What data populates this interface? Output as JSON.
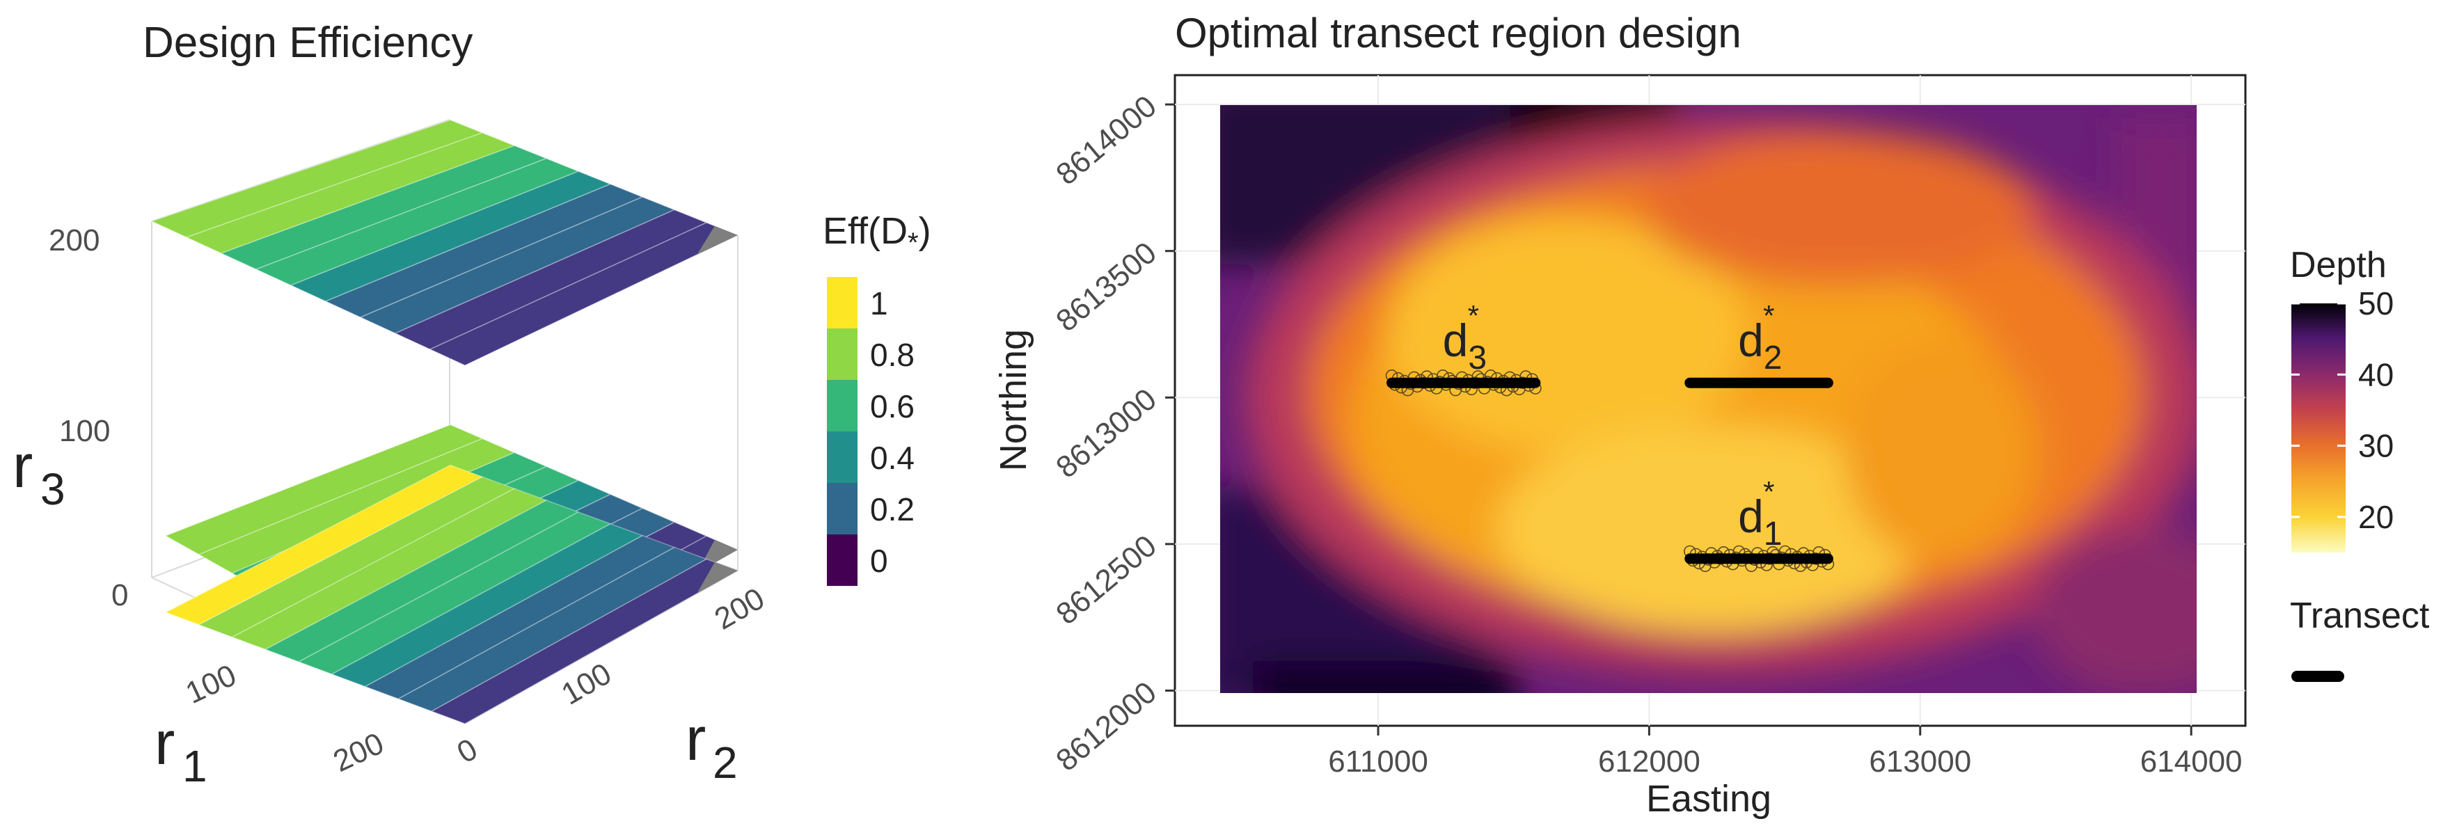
{
  "chart_data": [
    {
      "type": "surface3d",
      "title": "Design Efficiency",
      "axes": {
        "x": {
          "label": "r",
          "subscript": "1",
          "ticks": [
            "100",
            "200"
          ]
        },
        "y": {
          "label": "r",
          "subscript": "2",
          "ticks": [
            "0",
            "100",
            "200"
          ]
        },
        "z": {
          "label": "r",
          "subscript": "3",
          "ticks": [
            "0",
            "100",
            "200"
          ]
        }
      },
      "legend": {
        "title": "Eff(D",
        "title_subscript": "*",
        "title_close": ")",
        "labels": [
          "1",
          "0.8",
          "0.6",
          "0.4",
          "0.2",
          "0"
        ],
        "colors": [
          "#fde725",
          "#8fd744",
          "#35b779",
          "#21908c",
          "#31688e",
          "#443983",
          "#440154"
        ]
      },
      "surface_levels": [
        0,
        50,
        200
      ],
      "series": [
        {
          "name": "r3 = 200",
          "bands": [
            0.9,
            0.8,
            0.7,
            0.6,
            0.5,
            0.4,
            0.3,
            0.2,
            0.1
          ]
        },
        {
          "name": "r3 = 50",
          "bands": [
            0.9,
            0.8,
            0.7,
            0.6,
            0.5,
            0.4,
            0.3,
            0.2,
            0.1
          ]
        },
        {
          "name": "r3 = 0",
          "bands": [
            1.0,
            0.9,
            0.8,
            0.7,
            0.6,
            0.5,
            0.4,
            0.3,
            0.2
          ]
        }
      ]
    },
    {
      "type": "heatmap",
      "title": "Optimal transect region design",
      "xlabel": "Easting",
      "ylabel": "Northing",
      "xticks": [
        "611000",
        "612000",
        "613000",
        "614000"
      ],
      "yticks": [
        "8612000",
        "8612500",
        "8613000",
        "8613500",
        "8614000"
      ],
      "xlim": [
        610250,
        614200
      ],
      "ylim": [
        8611880,
        8614100
      ],
      "depth_legend": {
        "title": "Depth",
        "labels": [
          "50",
          "40",
          "30",
          "20"
        ],
        "range": [
          15,
          50
        ]
      },
      "transect_legend": {
        "title": "Transect"
      },
      "transects": [
        {
          "label": "d",
          "subscript": "1",
          "sup": "*",
          "x": [
            612150,
            612660
          ],
          "y": 8612450
        },
        {
          "label": "d",
          "subscript": "2",
          "sup": "*",
          "x": [
            612150,
            612660
          ],
          "y": 8613050
        },
        {
          "label": "d",
          "subscript": "3",
          "sup": "*",
          "x": [
            611050,
            611580
          ],
          "y": 8613050
        }
      ]
    }
  ]
}
